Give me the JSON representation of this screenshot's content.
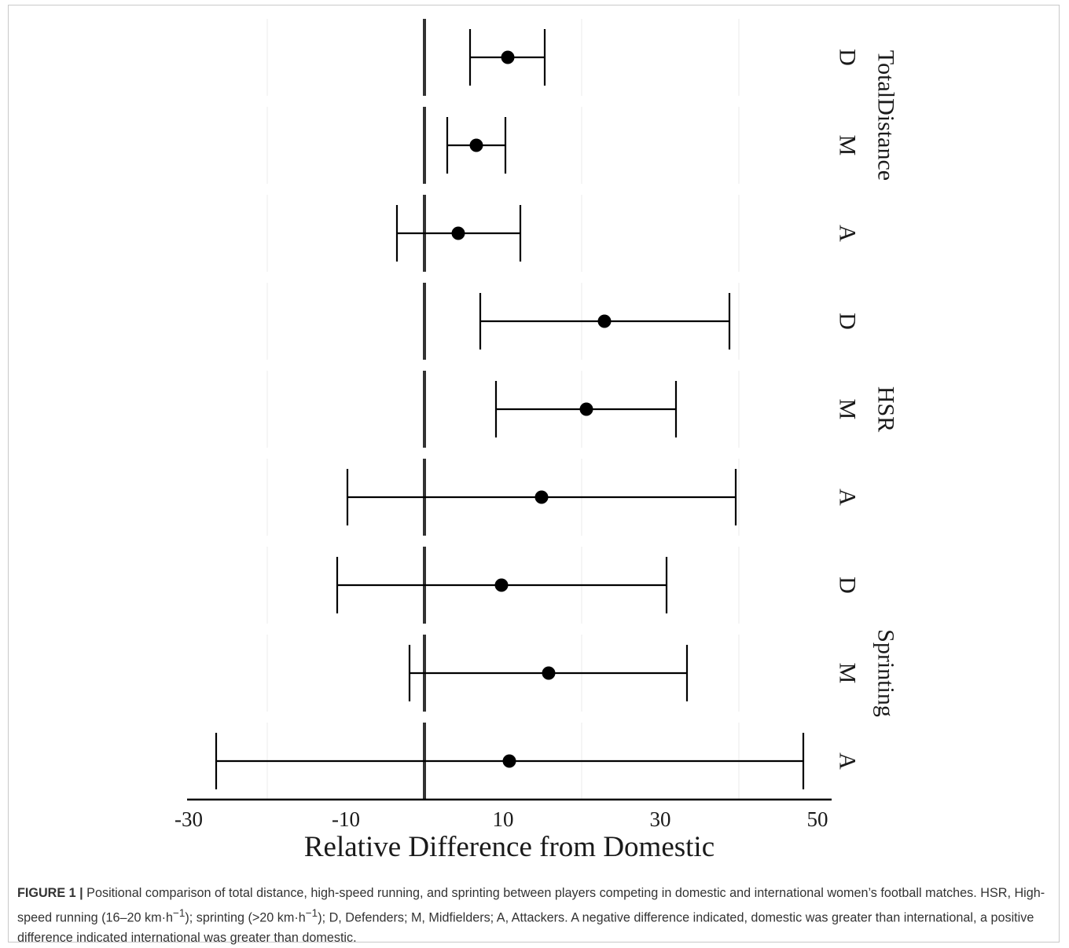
{
  "chart_data": {
    "type": "forest",
    "xlabel": "Relative Difference from Domestic",
    "xlim": [
      -30,
      50
    ],
    "x_ticks": [
      -30,
      -10,
      10,
      30,
      50
    ],
    "x_tick_labels": [
      "-30",
      "-10",
      "10",
      "30",
      "50"
    ],
    "reference_line": 0,
    "grid": "vertical-minor-light",
    "facets": [
      {
        "name": "TotalDistance",
        "rows": [
          {
            "label": "D",
            "estimate": 10.6,
            "lower": 5.8,
            "upper": 15.3
          },
          {
            "label": "M",
            "estimate": 6.6,
            "lower": 2.9,
            "upper": 10.3
          },
          {
            "label": "A",
            "estimate": 4.3,
            "lower": -3.5,
            "upper": 12.2
          }
        ]
      },
      {
        "name": "HSR",
        "rows": [
          {
            "label": "D",
            "estimate": 22.9,
            "lower": 7.1,
            "upper": 38.8
          },
          {
            "label": "M",
            "estimate": 20.6,
            "lower": 9.1,
            "upper": 32.0
          },
          {
            "label": "A",
            "estimate": 14.9,
            "lower": -9.8,
            "upper": 39.6
          }
        ]
      },
      {
        "name": "Sprinting",
        "rows": [
          {
            "label": "D",
            "estimate": 9.8,
            "lower": -11.1,
            "upper": 30.8
          },
          {
            "label": "M",
            "estimate": 15.8,
            "lower": -1.9,
            "upper": 33.4
          },
          {
            "label": "A",
            "estimate": 10.8,
            "lower": -26.5,
            "upper": 48.2
          }
        ]
      }
    ]
  },
  "caption": {
    "label": "FIGURE 1 |",
    "text_1": " Positional comparison of total distance, high-speed running, and sprinting between players competing in domestic and international women’s football matches. HSR, High-speed running (16–20 km·h",
    "sup_1": "−1",
    "text_2": "); sprinting (>20 km·h",
    "sup_2": "−1",
    "text_3": "); D, Defenders; M, Midfielders; A, Attackers. A negative difference indicated, domestic was greater than international, a positive difference indicated international was greater than domestic."
  }
}
